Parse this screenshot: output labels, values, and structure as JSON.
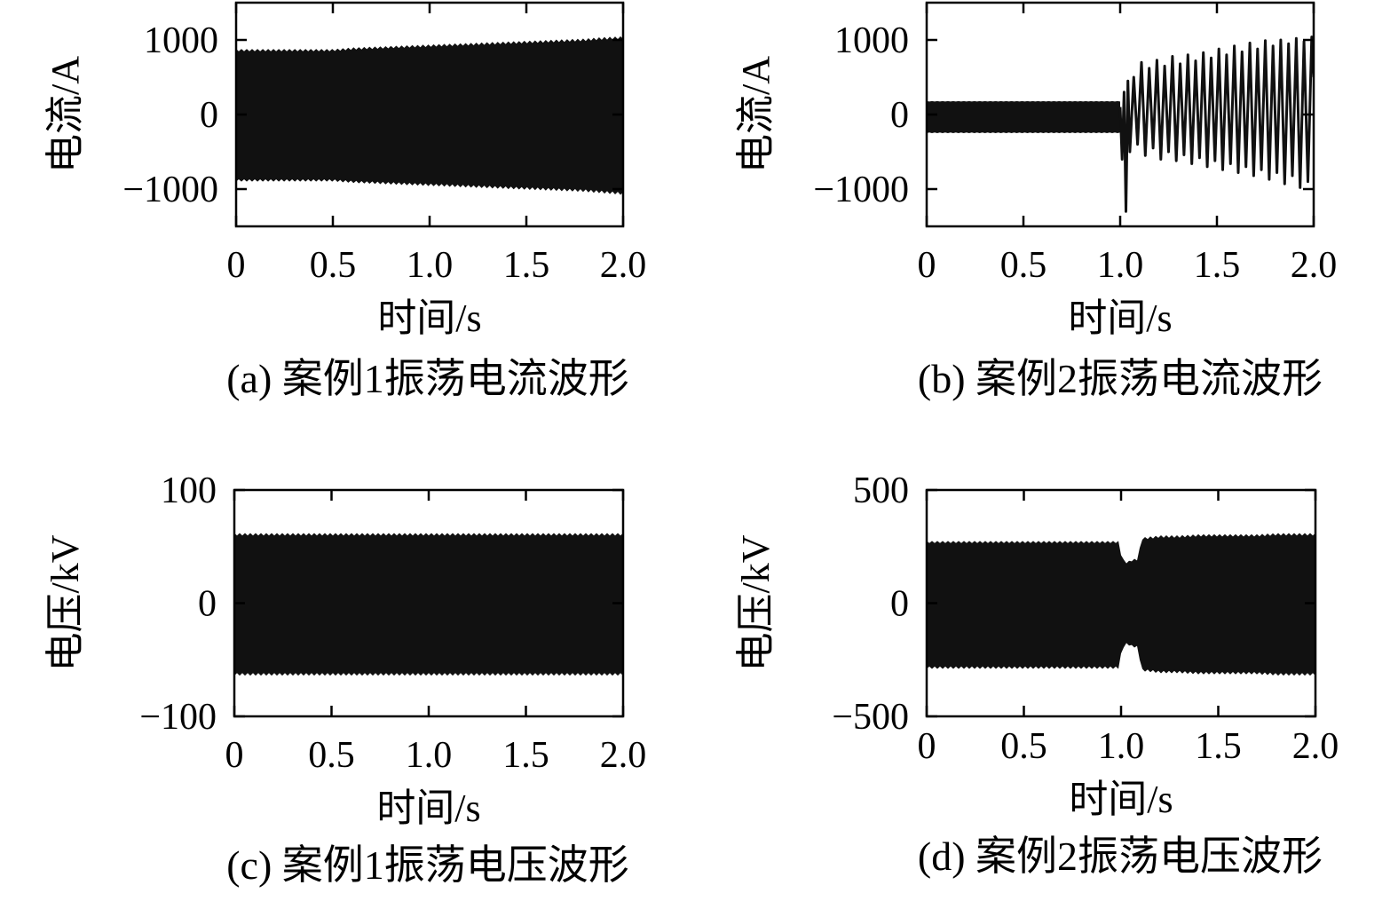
{
  "chart_data": [
    {
      "id": "a",
      "type": "line",
      "caption": "(a) 案例1振荡电流波形",
      "xlabel": "时间/s",
      "ylabel": "电流/A",
      "xlim": [
        0,
        2.0
      ],
      "ylim": [
        -1500,
        1500
      ],
      "xticks": [
        "0",
        "0.5",
        "1.0",
        "1.5",
        "2.0"
      ],
      "xtick_values": [
        0,
        0.5,
        1.0,
        1.5,
        2.0
      ],
      "yticks": [
        "1000",
        "0",
        "−1000"
      ],
      "ytick_values": [
        1000,
        0,
        -1000
      ],
      "style": "dense-band",
      "series": [
        {
          "x": [
            0,
            0.5,
            0.6,
            0.8,
            1.0,
            1.2,
            1.4,
            1.6,
            1.8,
            1.9,
            2.0
          ],
          "upper": [
            880,
            880,
            900,
            920,
            940,
            960,
            980,
            1000,
            1020,
            1040,
            1050
          ],
          "lower": [
            -900,
            -900,
            -920,
            -940,
            -960,
            -980,
            -1000,
            -1020,
            -1040,
            -1060,
            -1080
          ]
        }
      ]
    },
    {
      "id": "b",
      "type": "line",
      "caption": "(b) 案例2振荡电流波形",
      "xlabel": "时间/s",
      "ylabel": "电流/A",
      "xlim": [
        0,
        2.0
      ],
      "ylim": [
        -1500,
        1500
      ],
      "xticks": [
        "0",
        "0.5",
        "1.0",
        "1.5",
        "2.0"
      ],
      "xtick_values": [
        0,
        0.5,
        1.0,
        1.5,
        2.0
      ],
      "yticks": [
        "1000",
        "0",
        "−1000"
      ],
      "ytick_values": [
        1000,
        0,
        -1000
      ],
      "style": "band-then-oscillation",
      "band": {
        "x_start": 0,
        "x_end": 1.0,
        "upper": 180,
        "lower": -250
      },
      "series": [
        {
          "x": [
            1.0,
            1.01,
            1.02,
            1.03,
            1.04,
            1.05,
            1.07,
            1.09,
            1.11,
            1.13,
            1.15,
            1.17,
            1.19,
            1.21,
            1.23,
            1.25,
            1.27,
            1.29,
            1.31,
            1.33,
            1.35,
            1.37,
            1.39,
            1.41,
            1.43,
            1.45,
            1.47,
            1.49,
            1.51,
            1.53,
            1.55,
            1.57,
            1.59,
            1.61,
            1.63,
            1.65,
            1.67,
            1.69,
            1.71,
            1.73,
            1.75,
            1.77,
            1.79,
            1.81,
            1.83,
            1.85,
            1.87,
            1.89,
            1.91,
            1.93,
            1.95,
            1.97,
            1.99,
            2.0
          ],
          "y": [
            100,
            -600,
            300,
            -1300,
            450,
            -500,
            500,
            -400,
            700,
            -550,
            620,
            -450,
            730,
            -600,
            650,
            -500,
            780,
            -620,
            680,
            -540,
            800,
            -660,
            720,
            -580,
            830,
            -700,
            760,
            -620,
            880,
            -740,
            800,
            -660,
            920,
            -780,
            840,
            -700,
            960,
            -820,
            880,
            -740,
            990,
            -870,
            920,
            -780,
            1000,
            -930,
            950,
            -820,
            1020,
            -980,
            980,
            -900,
            1040,
            500
          ]
        }
      ]
    },
    {
      "id": "c",
      "type": "line",
      "caption": "(c) 案例1振荡电压波形",
      "xlabel": "时间/s",
      "ylabel": "电压/kV",
      "xlim": [
        0,
        2.0
      ],
      "ylim": [
        -100,
        100
      ],
      "xticks": [
        "0",
        "0.5",
        "1.0",
        "1.5",
        "2.0"
      ],
      "xtick_values": [
        0,
        0.5,
        1.0,
        1.5,
        2.0
      ],
      "yticks": [
        "100",
        "0",
        "−100"
      ],
      "ytick_values": [
        100,
        0,
        -100
      ],
      "style": "dense-band",
      "series": [
        {
          "x": [
            0,
            0.5,
            1.0,
            1.5,
            2.0
          ],
          "upper": [
            62,
            62,
            62,
            62,
            62
          ],
          "lower": [
            -64,
            -64,
            -64,
            -64,
            -64
          ]
        }
      ]
    },
    {
      "id": "d",
      "type": "line",
      "caption": "(d) 案例2振荡电压波形",
      "xlabel": "时间/s",
      "ylabel": "电压/kV",
      "xlim": [
        0,
        2.0
      ],
      "ylim": [
        -500,
        500
      ],
      "xticks": [
        "0",
        "0.5",
        "1.0",
        "1.5",
        "2.0"
      ],
      "xtick_values": [
        0,
        0.5,
        1.0,
        1.5,
        2.0
      ],
      "yticks": [
        "500",
        "0",
        "−500"
      ],
      "ytick_values": [
        500,
        0,
        -500
      ],
      "style": "dense-band",
      "series": [
        {
          "x": [
            0,
            0.999,
            1.0,
            1.02,
            1.05,
            1.08,
            1.09,
            1.1,
            1.2,
            1.3,
            1.4,
            1.5,
            1.6,
            1.7,
            1.8,
            1.9,
            2.0
          ],
          "upper": [
            275,
            275,
            220,
            180,
            190,
            200,
            180,
            290,
            300,
            300,
            305,
            305,
            305,
            305,
            310,
            310,
            310
          ],
          "lower": [
            -290,
            -290,
            -230,
            -180,
            -190,
            -200,
            -180,
            -300,
            -310,
            -310,
            -315,
            -315,
            -315,
            -315,
            -320,
            -320,
            -320
          ]
        }
      ]
    }
  ]
}
